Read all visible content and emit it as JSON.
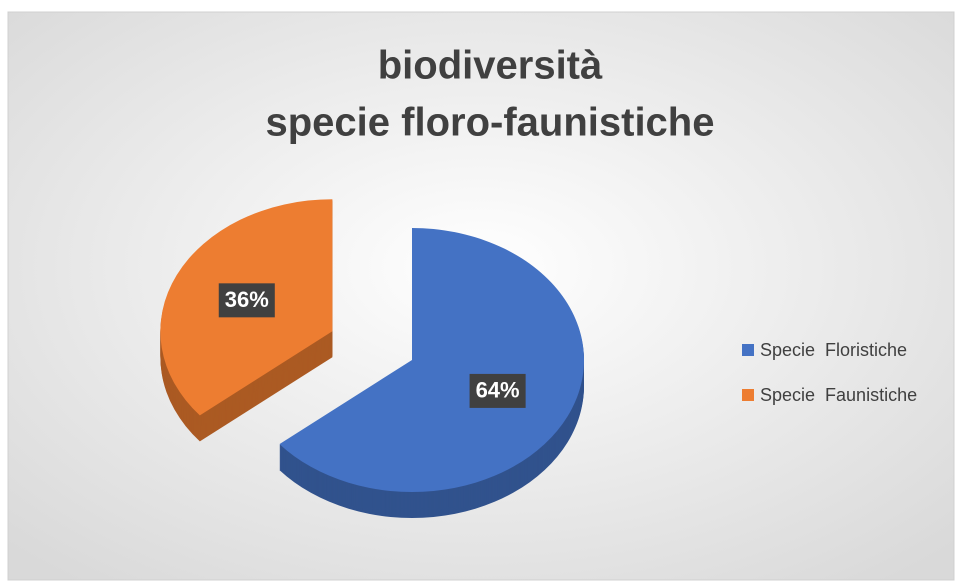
{
  "chart_data": {
    "type": "pie",
    "title": [
      "biodiversità",
      "specie floro-faunistiche"
    ],
    "categories": [
      "Specie  Floristiche",
      "Specie  Faunistiche"
    ],
    "values": [
      64,
      36
    ],
    "value_labels": [
      "64%",
      "36%"
    ],
    "colors": [
      "#4472c4",
      "#ed7d31"
    ],
    "legend": "right"
  }
}
